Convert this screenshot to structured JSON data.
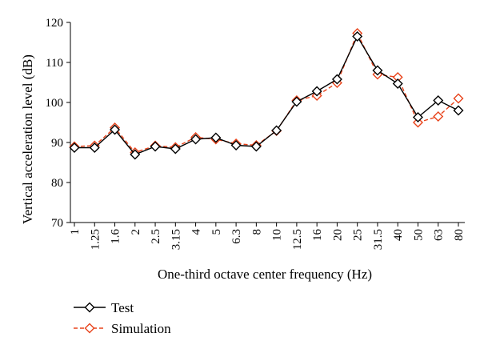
{
  "chart_data": {
    "type": "line",
    "xlabel": "One-third octave center frequency (Hz)",
    "ylabel": "Vertical acceleration level (dB)",
    "ylim": [
      70,
      120
    ],
    "yticks": [
      70,
      80,
      90,
      100,
      110,
      120
    ],
    "categories": [
      "1",
      "1.25",
      "1.6",
      "2",
      "2.5",
      "3.15",
      "4",
      "5",
      "6.3",
      "8",
      "10",
      "12.5",
      "16",
      "20",
      "25",
      "31.5",
      "40",
      "50",
      "63",
      "80"
    ],
    "grid": false,
    "legend_position": "bottom-left",
    "series": [
      {
        "name": "Test",
        "color": "#000000",
        "line_style": "solid",
        "marker": "diamond-open",
        "values": [
          88.7,
          88.7,
          93.2,
          87.0,
          89.0,
          88.4,
          90.8,
          91.2,
          89.3,
          89.0,
          93.0,
          100.2,
          102.8,
          105.8,
          116.5,
          108.0,
          104.7,
          96.3,
          100.5,
          98.0
        ]
      },
      {
        "name": "Simulation",
        "color": "#e8431b",
        "line_style": "dashed",
        "marker": "diamond-open",
        "values": [
          89.0,
          89.2,
          93.7,
          87.5,
          89.2,
          88.8,
          91.3,
          90.8,
          89.7,
          89.3,
          92.9,
          100.5,
          101.7,
          104.9,
          117.3,
          107.0,
          106.3,
          95.0,
          96.5,
          101.0
        ]
      }
    ]
  }
}
